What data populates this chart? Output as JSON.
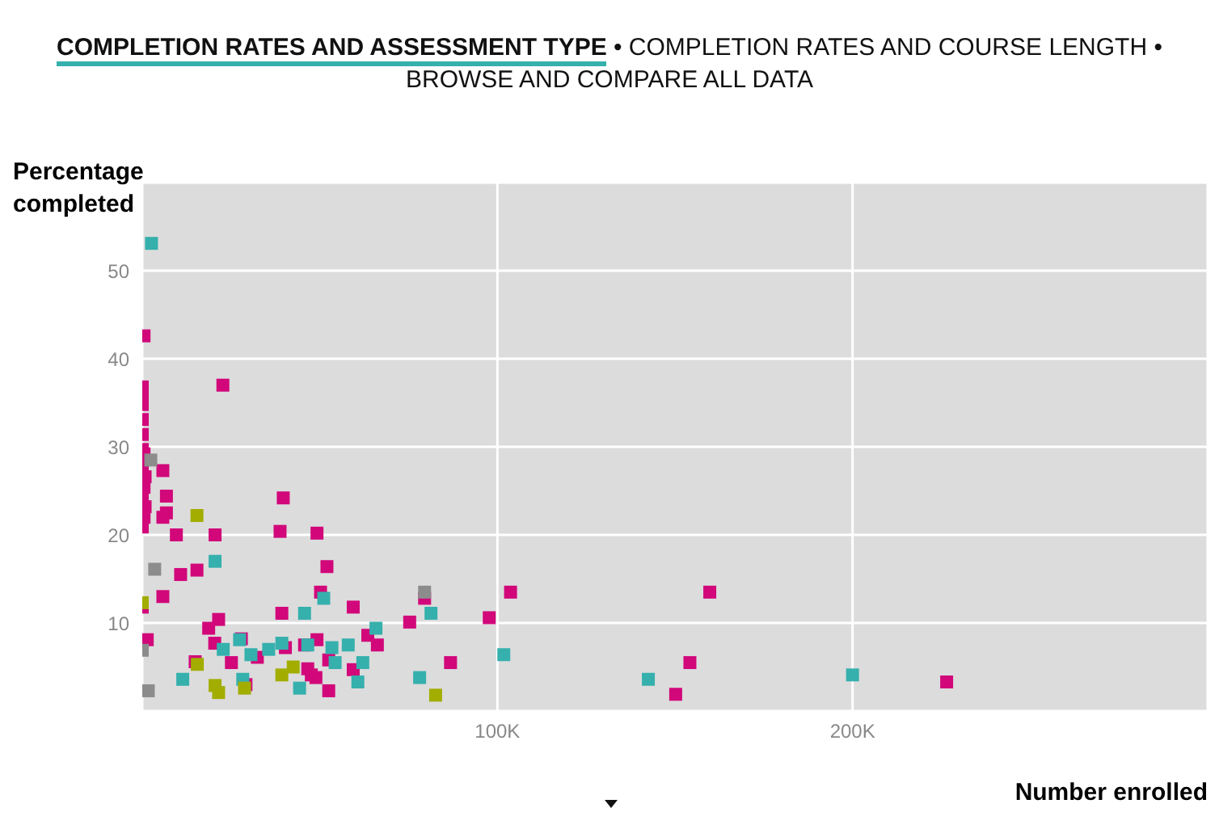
{
  "chart_data": {
    "type": "scatter",
    "title": "COMPLETION RATES AND ASSESSMENT TYPE",
    "annotations": [
      "• COMPLETION RATES AND COURSE LENGTH •",
      "BROWSE AND COMPARE ALL DATA"
    ],
    "xlabel": "Number enrolled",
    "ylabel": "Percentage completed",
    "xlim": [
      0,
      300000
    ],
    "xticks": [
      {
        "value": 100000,
        "label": "100K"
      },
      {
        "value": 200000,
        "label": "200K"
      }
    ],
    "ylim": [
      0,
      60
    ],
    "yticks": [
      10,
      20,
      30,
      40,
      50
    ],
    "grid": true,
    "marker": "square",
    "series": [
      {
        "color": "#d1077a",
        "x": [
          0,
          0,
          0,
          0,
          0,
          0,
          500,
          0,
          800,
          500,
          0,
          800,
          500,
          0,
          500,
          5800,
          6800,
          6800,
          5800,
          9600,
          20500,
          22700,
          10800,
          15400,
          5800,
          0,
          1400,
          39700,
          38800,
          49200,
          52000,
          50200,
          59400,
          39300,
          21500,
          18700,
          20400,
          27900,
          40300,
          45700,
          49200,
          32400,
          25100,
          14900,
          52500,
          46600,
          47600,
          48900,
          59400,
          52500,
          29200,
          63500,
          66200,
          75300,
          79500,
          86800,
          97700,
          103700,
          159800,
          154200,
          150200,
          226500
        ],
        "values": [
          36.8,
          35.7,
          34.8,
          33.1,
          31.4,
          29.7,
          29.2,
          27.8,
          26.6,
          25.4,
          24.3,
          23.2,
          22,
          20.9,
          42.6,
          27.3,
          24.4,
          22.5,
          22,
          20,
          20,
          37,
          15.5,
          16,
          13,
          11.8,
          8.1,
          24.2,
          20.4,
          20.2,
          16.4,
          13.5,
          11.8,
          11.1,
          10.4,
          9.4,
          7.7,
          8.2,
          7.2,
          7.5,
          8.1,
          6.1,
          5.5,
          5.6,
          5.8,
          4.8,
          4.1,
          3.8,
          4.7,
          2.3,
          3,
          8.6,
          7.5,
          10.1,
          12.8,
          5.5,
          10.6,
          13.5,
          13.5,
          5.5,
          1.9,
          3.3
        ]
      },
      {
        "color": "#35b0ad",
        "x": [
          2600,
          20500,
          51100,
          45700,
          81300,
          65800,
          22800,
          27400,
          30600,
          35600,
          39300,
          46600,
          53400,
          58000,
          54300,
          62100,
          11400,
          28300,
          44300,
          60700,
          78100,
          101800,
          142500,
          200000
        ],
        "values": [
          53.1,
          17,
          12.8,
          11.1,
          11.1,
          9.4,
          7,
          8.1,
          6.4,
          7,
          7.7,
          7.5,
          7.2,
          7.5,
          5.5,
          5.5,
          3.6,
          3.6,
          2.6,
          3.3,
          3.8,
          6.4,
          3.6,
          4.1
        ]
      },
      {
        "color": "#a2ad00",
        "x": [
          0,
          15400,
          15500,
          42500,
          39300,
          20500,
          21500,
          28800,
          82600
        ],
        "values": [
          12.3,
          22.2,
          5.3,
          5,
          4.1,
          2.9,
          2.1,
          2.6,
          1.8
        ]
      },
      {
        "color": "#8c8c8c",
        "x": [
          2400,
          3500,
          0,
          1700,
          79500
        ],
        "values": [
          28.5,
          16.1,
          6.9,
          2.3,
          13.5
        ]
      }
    ]
  }
}
